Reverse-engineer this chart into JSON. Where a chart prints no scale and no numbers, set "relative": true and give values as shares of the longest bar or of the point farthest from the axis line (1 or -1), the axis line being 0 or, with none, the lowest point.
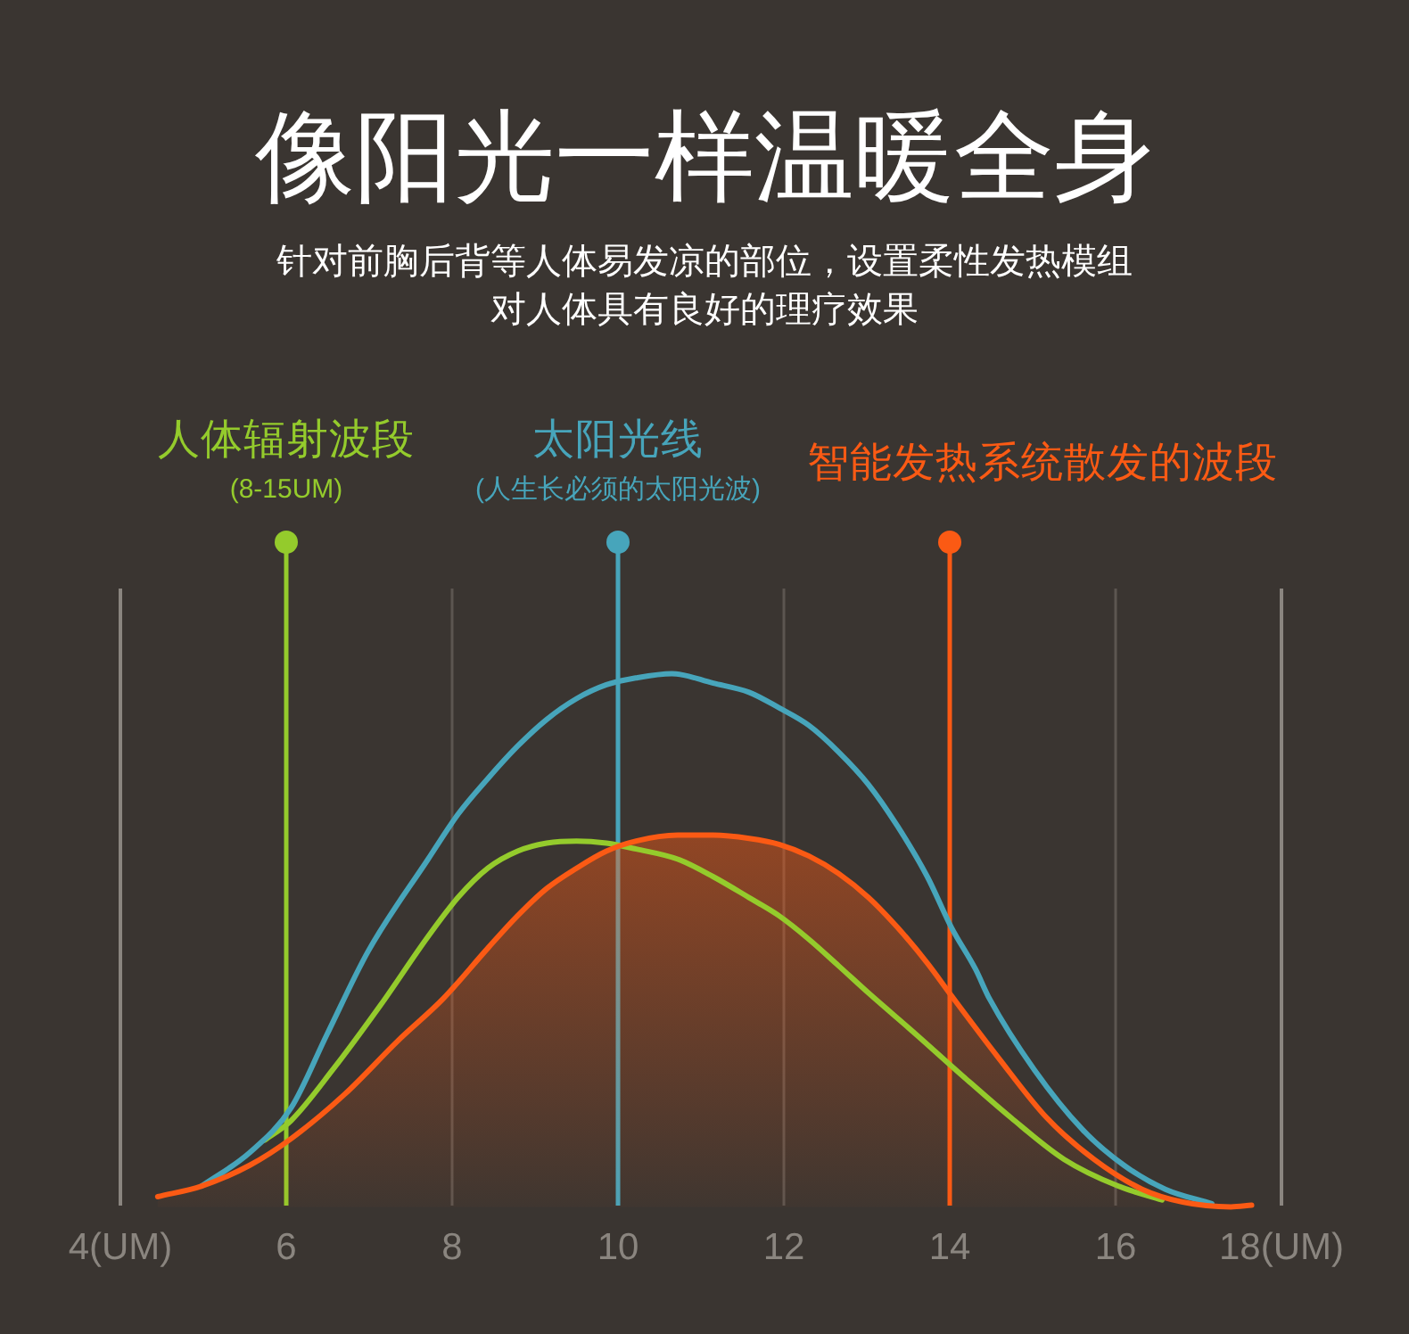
{
  "chart_data": {
    "type": "line",
    "title": "像阳光一样温暖全身",
    "subtitle": "针对前胸后背等人体易发凉的部位，设置柔性发热模组对人体具有良好的理疗效果",
    "relative": true,
    "xlim": [
      4,
      18
    ],
    "xticks": [
      {
        "value": 4,
        "label": "4(UM)"
      },
      6,
      8,
      10,
      12,
      14,
      16,
      {
        "value": 18,
        "label": "18(UM)"
      }
    ],
    "grid": "x",
    "series": [
      {
        "name": "人体辐射波段",
        "color": "#94cb2c",
        "x": [
          5.74,
          6.06,
          6.56,
          7.14,
          7.71,
          8.07,
          8.43,
          8.79,
          9.14,
          9.5,
          9.86,
          10.22,
          10.72,
          11.15,
          11.58,
          11.94,
          12.3,
          12.66,
          13.02,
          13.59,
          14.16,
          14.74,
          15.38,
          16.03,
          16.56
        ],
        "values": [
          0.125,
          0.162,
          0.257,
          0.379,
          0.507,
          0.58,
          0.635,
          0.667,
          0.682,
          0.686,
          0.682,
          0.671,
          0.652,
          0.619,
          0.58,
          0.546,
          0.502,
          0.452,
          0.401,
          0.324,
          0.245,
          0.167,
          0.089,
          0.039,
          0.013
        ]
      },
      {
        "name": "太阳光线",
        "color": "#47a5bb",
        "x": [
          4.98,
          5.56,
          6.06,
          6.49,
          6.99,
          7.71,
          8.07,
          8.43,
          8.79,
          9.14,
          9.5,
          9.86,
          10.22,
          10.65,
          11.15,
          11.58,
          11.94,
          12.3,
          12.66,
          13.02,
          13.37,
          13.73,
          14.02,
          14.31,
          14.48,
          15.02,
          15.6,
          16.1,
          16.6,
          17.16
        ],
        "values": [
          0.039,
          0.102,
          0.186,
          0.323,
          0.48,
          0.652,
          0.736,
          0.803,
          0.864,
          0.914,
          0.953,
          0.979,
          0.992,
          1.0,
          0.982,
          0.965,
          0.936,
          0.903,
          0.853,
          0.792,
          0.714,
          0.619,
          0.524,
          0.446,
          0.39,
          0.257,
          0.145,
          0.078,
          0.033,
          0.006
        ]
      },
      {
        "name": "智能发热系统散发的波段",
        "color": "#fb5a14",
        "type": "area",
        "x": [
          4.45,
          4.98,
          5.56,
          6.06,
          6.71,
          7.35,
          7.89,
          8.43,
          8.79,
          9.14,
          9.5,
          9.86,
          10.22,
          10.72,
          11.15,
          11.58,
          11.94,
          12.3,
          12.66,
          13.02,
          13.37,
          13.73,
          14.02,
          14.59,
          15.17,
          15.74,
          16.32,
          16.81,
          17.39,
          17.64
        ],
        "values": [
          0.019,
          0.039,
          0.078,
          0.128,
          0.212,
          0.312,
          0.39,
          0.485,
          0.546,
          0.597,
          0.635,
          0.667,
          0.686,
          0.697,
          0.697,
          0.691,
          0.68,
          0.658,
          0.625,
          0.58,
          0.524,
          0.457,
          0.396,
          0.279,
          0.167,
          0.089,
          0.033,
          0.009,
          0.0,
          0.003
        ]
      }
    ],
    "ref_lines": [
      {
        "axis": "x",
        "value": 6,
        "color": "#94cb2c"
      },
      {
        "axis": "x",
        "value": 10,
        "color": "#47a5bb"
      },
      {
        "axis": "x",
        "value": 14,
        "color": "#fb5a14"
      }
    ],
    "annotations": [
      "(8-15UM)",
      "(人生长必须的太阳光波)"
    ]
  }
}
